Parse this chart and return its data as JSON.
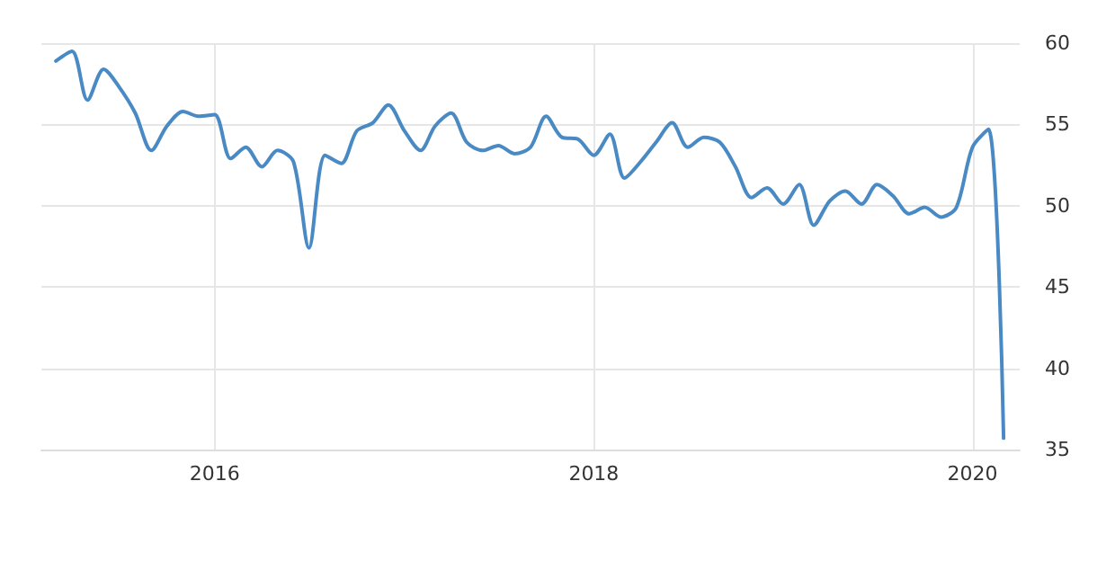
{
  "chart_data": {
    "type": "line",
    "x": [
      "2015-03",
      "2015-04",
      "2015-05",
      "2015-06",
      "2015-07",
      "2015-08",
      "2015-09",
      "2015-10",
      "2015-11",
      "2015-12",
      "2016-01",
      "2016-02",
      "2016-03",
      "2016-04",
      "2016-05",
      "2016-06",
      "2016-07",
      "2016-08",
      "2016-09",
      "2016-10",
      "2016-11",
      "2016-12",
      "2017-01",
      "2017-02",
      "2017-03",
      "2017-04",
      "2017-05",
      "2017-06",
      "2017-07",
      "2017-08",
      "2017-09",
      "2017-10",
      "2017-11",
      "2017-12",
      "2018-01",
      "2018-02",
      "2018-03",
      "2018-04",
      "2018-05",
      "2018-06",
      "2018-07",
      "2018-08",
      "2018-09",
      "2018-10",
      "2018-11",
      "2018-12",
      "2019-01",
      "2019-02",
      "2019-03",
      "2019-04",
      "2019-05",
      "2019-06",
      "2019-07",
      "2019-08",
      "2019-09",
      "2019-10",
      "2019-11",
      "2019-12",
      "2020-01",
      "2020-02",
      "2020-03"
    ],
    "series": [
      {
        "color": "#4a8ac4",
        "values": [
          58.9,
          59.5,
          56.5,
          58.4,
          57.3,
          55.7,
          53.4,
          54.9,
          55.8,
          55.5,
          55.6,
          52.9,
          53.6,
          52.4,
          53.4,
          52.7,
          47.4,
          53.1,
          52.6,
          54.6,
          55.1,
          56.2,
          54.6,
          53.4,
          54.9,
          55.7,
          53.9,
          53.4,
          53.7,
          53.2,
          53.6,
          55.5,
          54.2,
          54.1,
          53.1,
          54.4,
          51.7,
          52.7,
          53.9,
          55.1,
          53.6,
          54.2,
          53.9,
          52.4,
          50.5,
          51.1,
          50.1,
          51.3,
          48.8,
          50.3,
          50.9,
          50.1,
          51.3,
          50.6,
          49.5,
          49.9,
          49.3,
          49.9,
          53.6,
          54.7,
          35.7
        ]
      }
    ],
    "xlim": [
      "2015-02",
      "2020-04"
    ],
    "xticks": [
      "2016",
      "2018",
      "2020"
    ],
    "ylim": [
      35,
      60
    ],
    "yticks": [
      35,
      40,
      45,
      50,
      55,
      60
    ],
    "grid": true,
    "marker": "none",
    "line_style": "solid"
  }
}
